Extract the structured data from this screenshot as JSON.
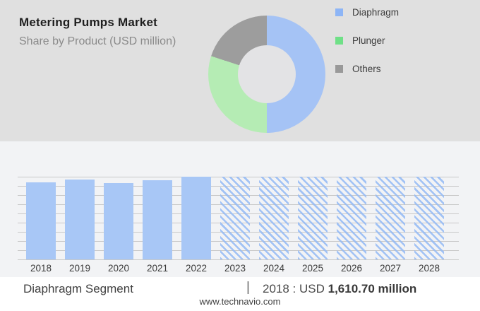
{
  "header": {
    "title": "Metering Pumps Market",
    "subtitle": "Share by Product (USD million)"
  },
  "legend": {
    "items": [
      {
        "label": "Diaphragm",
        "color": "#8db5f6"
      },
      {
        "label": "Plunger",
        "color": "#6fe087"
      },
      {
        "label": "Others",
        "color": "#999999"
      }
    ]
  },
  "donut": {
    "slice_colors": [
      "#a5c3f5",
      "#b5ecb4",
      "#9d9d9d"
    ],
    "hole_color": "#e3e3e5"
  },
  "chart_data": [
    {
      "type": "pie",
      "donut": true,
      "title": "Share by Product (USD million)",
      "labels": [
        "Diaphragm",
        "Plunger",
        "Others"
      ],
      "values": [
        50,
        30,
        20
      ],
      "values_unit": "percent (estimated from arc angles)",
      "legend_position": "right"
    },
    {
      "type": "bar",
      "title": "Diaphragm Segment",
      "categories": [
        "2018",
        "2019",
        "2020",
        "2021",
        "2022",
        "2023",
        "2024",
        "2025",
        "2026",
        "2027",
        "2028"
      ],
      "values": [
        1610.7,
        1670,
        1596,
        1655,
        1729,
        1729,
        1729,
        1729,
        1729,
        1729,
        1729
      ],
      "value_label_2018": "USD 1,610.70 million",
      "note": "2018 value labeled on image; 2019-2028 estimated from bar heights; 2023-2028 are forecast bars drawn with diagonal hatch",
      "forecast_years": [
        "2023",
        "2024",
        "2025",
        "2026",
        "2027",
        "2028"
      ],
      "ylim": [
        0,
        1729
      ],
      "grid": true,
      "xlabel": "",
      "ylabel": ""
    }
  ],
  "footer": {
    "segment_label": "Diaphragm Segment",
    "separator": "|",
    "value_prefix": "2018 : USD ",
    "value_bold": "1,610.70 million",
    "website": "www.technavio.com"
  },
  "colors": {
    "header_background": "#e0e0e0",
    "chart_background": "#f2f3f5",
    "footer_background": "#ffffff",
    "gridline": "#c8c8c8",
    "bar_solid": "#a8c7f6",
    "bar_hatch": "#93baf5"
  }
}
